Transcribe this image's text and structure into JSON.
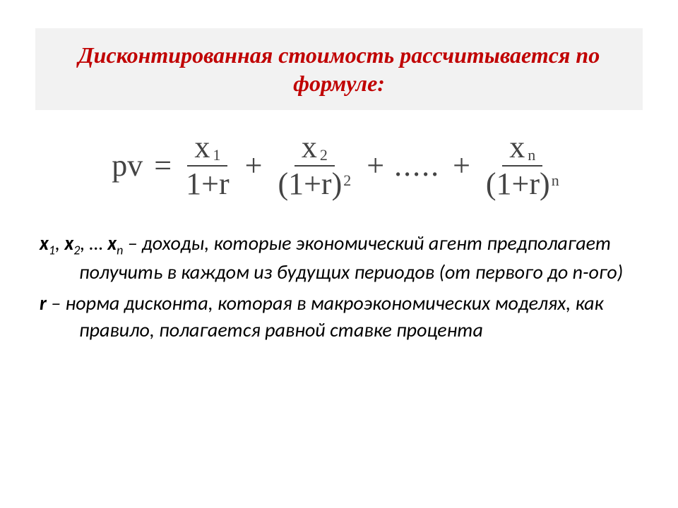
{
  "title": "Дисконтированная стоимость рассчитывается по формуле:",
  "colors": {
    "title_text": "#c00000",
    "title_bg": "#f2f2f2",
    "formula_text": "#444444",
    "body_text": "#000000",
    "page_bg": "#ffffff",
    "fraction_rule": "#444444"
  },
  "typography": {
    "title_fontsize_pt": 24,
    "title_style": "bold italic",
    "formula_fontsize_pt": 32,
    "formula_sub_fontsize_pt": 16,
    "body_fontsize_pt": 21,
    "body_style": "italic",
    "body_font_family": "Calibri",
    "formula_font_family": "Times New Roman"
  },
  "formula": {
    "lhs": "pv",
    "eq": "=",
    "plus": "+",
    "dots": ".....",
    "terms": [
      {
        "num_base": "x",
        "num_sub": "1",
        "den_base": "1",
        "den_op": "+",
        "den_r": "r",
        "den_exp": ""
      },
      {
        "num_base": "x",
        "num_sub": "2",
        "den_open": "(",
        "den_base": "1",
        "den_op": "+",
        "den_r": "r",
        "den_close": ")",
        "den_exp": "2"
      },
      {
        "num_base": "x",
        "num_sub": "n",
        "den_open": "(",
        "den_base": "1",
        "den_op": "+",
        "den_r": "r",
        "den_close": ")",
        "den_exp": "n"
      }
    ]
  },
  "definitions": {
    "x": {
      "label_x": "x",
      "sub1": "1",
      "sep1": ", ",
      "sub2": "2",
      "sep2": ", … ",
      "subn": "n",
      "text": " – доходы,  которые экономический агент предполагает получить в каждом из будущих периодов (от первого до n-ого)"
    },
    "r": {
      "label_r": "r",
      "text": "  – норма дисконта, которая в макроэкономических моделях, как правило, полагается равной ставке процента"
    }
  }
}
